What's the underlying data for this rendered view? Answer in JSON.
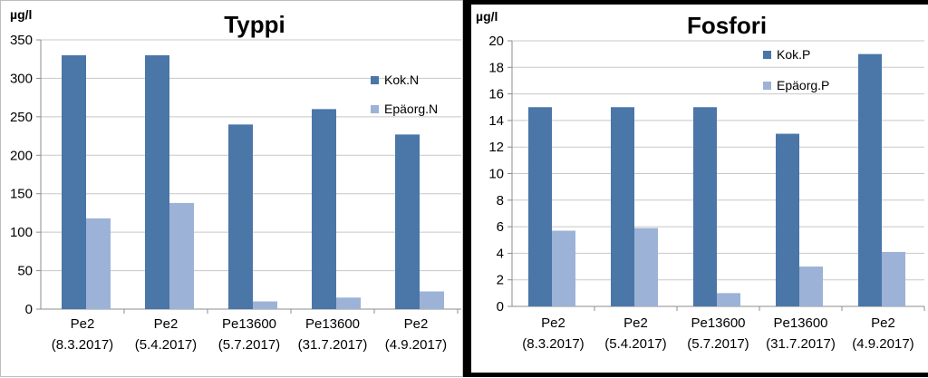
{
  "colors": {
    "series1": "#4a76a8",
    "series2": "#9cb2d7",
    "grid": "#c8c8c8",
    "axis": "#8c8c8c"
  },
  "chart_data": [
    {
      "type": "bar",
      "title": "Typpi",
      "ylabel": "µg/l",
      "ylim": [
        0,
        350
      ],
      "yticks": [
        0,
        50,
        100,
        150,
        200,
        250,
        300,
        350
      ],
      "grid": true,
      "legend_position": "right",
      "categories": [
        [
          "Pe2",
          "(8.3.2017)"
        ],
        [
          "Pe2",
          "(5.4.2017)"
        ],
        [
          "Pe13600",
          "(5.7.2017)"
        ],
        [
          "Pe13600",
          "(31.7.2017)"
        ],
        [
          "Pe2",
          "(4.9.2017)"
        ]
      ],
      "series": [
        {
          "name": "Kok.N",
          "values": [
            330,
            330,
            240,
            260,
            227
          ]
        },
        {
          "name": "Epäorg.N",
          "values": [
            118,
            138,
            10,
            15,
            23
          ]
        }
      ]
    },
    {
      "type": "bar",
      "title": "Fosfori",
      "ylabel": "µg/l",
      "ylim": [
        0,
        20
      ],
      "yticks": [
        0,
        2,
        4,
        6,
        8,
        10,
        12,
        14,
        16,
        18,
        20
      ],
      "grid": true,
      "legend_position": "top-right",
      "categories": [
        [
          "Pe2",
          "(8.3.2017)"
        ],
        [
          "Pe2",
          "(5.4.2017)"
        ],
        [
          "Pe13600",
          "(5.7.2017)"
        ],
        [
          "Pe13600",
          "(31.7.2017)"
        ],
        [
          "Pe2",
          "(4.9.2017)"
        ]
      ],
      "series": [
        {
          "name": "Kok.P",
          "values": [
            15,
            15,
            15,
            13,
            19
          ]
        },
        {
          "name": "Epäorg.P",
          "values": [
            5.7,
            5.9,
            1,
            3,
            4.1
          ]
        }
      ]
    }
  ]
}
